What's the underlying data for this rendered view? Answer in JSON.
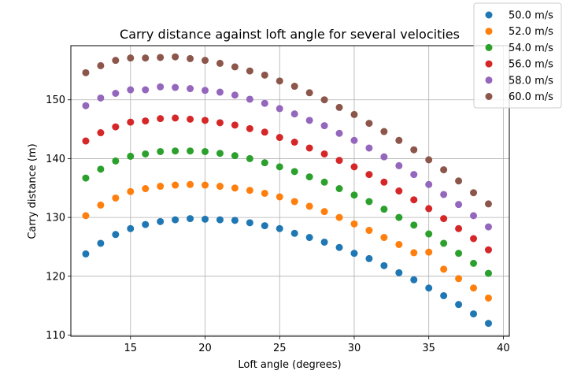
{
  "chart_data": {
    "type": "scatter",
    "title": "Carry distance against loft angle for several velocities",
    "xlabel": "Loft angle (degrees)",
    "ylabel": "Carry distance (m)",
    "xlim": [
      11.0,
      40.4
    ],
    "ylim": [
      109.8,
      159.2
    ],
    "xticks": [
      15,
      20,
      25,
      30,
      35,
      40
    ],
    "yticks": [
      110,
      120,
      130,
      140,
      150
    ],
    "grid": true,
    "legend_position": "top-right",
    "x": [
      12,
      13,
      14,
      15,
      16,
      17,
      18,
      19,
      20,
      21,
      22,
      23,
      24,
      25,
      26,
      27,
      28,
      29,
      30,
      31,
      32,
      33,
      34,
      35,
      36,
      37,
      38,
      39
    ],
    "series": [
      {
        "name": "50.0 m/s",
        "color": "#1f77b4",
        "values": [
          123.8,
          125.6,
          127.1,
          128.1,
          128.8,
          129.3,
          129.6,
          129.8,
          129.7,
          129.6,
          129.5,
          129.1,
          128.6,
          128.1,
          127.3,
          126.6,
          125.8,
          124.9,
          123.9,
          123.0,
          121.8,
          120.6,
          119.4,
          118.0,
          116.7,
          115.2,
          113.6,
          112.0
        ]
      },
      {
        "name": "52.0 m/s",
        "color": "#ff7f0e",
        "values": [
          130.3,
          132.1,
          133.3,
          134.4,
          134.9,
          135.3,
          135.5,
          135.6,
          135.5,
          135.3,
          135.0,
          134.6,
          134.1,
          133.5,
          132.7,
          131.9,
          131.0,
          130.0,
          128.9,
          127.8,
          126.6,
          125.4,
          124.0,
          124.1,
          121.2,
          119.6,
          118.0,
          116.3
        ]
      },
      {
        "name": "54.0 m/s",
        "color": "#2ca02c",
        "values": [
          136.7,
          138.2,
          139.6,
          140.4,
          140.8,
          141.2,
          141.3,
          141.3,
          141.2,
          140.9,
          140.5,
          140.0,
          139.3,
          138.6,
          137.8,
          136.9,
          136.0,
          134.9,
          133.8,
          132.7,
          131.4,
          130.0,
          128.7,
          127.2,
          125.6,
          123.9,
          122.2,
          120.5
        ]
      },
      {
        "name": "56.0 m/s",
        "color": "#d62728",
        "values": [
          143.0,
          144.4,
          145.4,
          146.2,
          146.4,
          146.8,
          146.9,
          146.7,
          146.5,
          146.1,
          145.7,
          145.1,
          144.5,
          143.6,
          142.8,
          141.8,
          140.8,
          139.7,
          138.6,
          137.3,
          136.0,
          134.5,
          133.0,
          131.5,
          129.8,
          128.1,
          126.4,
          124.5
        ]
      },
      {
        "name": "58.0 m/s",
        "color": "#9467bd",
        "values": [
          149.0,
          150.3,
          151.1,
          151.7,
          151.7,
          152.2,
          152.1,
          151.9,
          151.6,
          151.3,
          150.8,
          150.1,
          149.4,
          148.5,
          147.6,
          146.5,
          145.6,
          144.3,
          143.1,
          141.8,
          140.3,
          138.8,
          137.3,
          135.6,
          133.9,
          132.2,
          130.3,
          128.4
        ]
      },
      {
        "name": "60.0 m/s",
        "color": "#8c564b",
        "values": [
          154.6,
          155.8,
          156.7,
          157.1,
          157.1,
          157.2,
          157.3,
          157.0,
          156.7,
          156.2,
          155.6,
          154.9,
          154.2,
          153.2,
          152.3,
          151.2,
          150.0,
          148.7,
          147.5,
          146.0,
          144.6,
          143.1,
          141.5,
          139.8,
          138.1,
          136.2,
          134.2,
          132.3
        ]
      }
    ]
  }
}
